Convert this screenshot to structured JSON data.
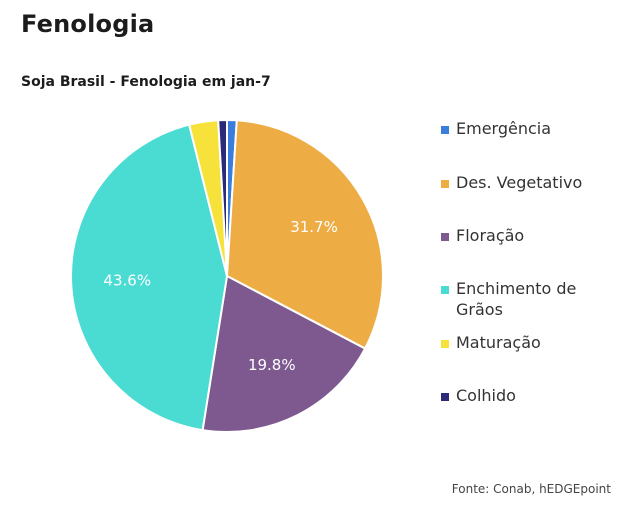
{
  "header": {
    "title": "Fenologia"
  },
  "chart_data": {
    "type": "pie",
    "title": "Soja Brasil - Fenologia em jan-7",
    "slices": [
      {
        "name": "Emergência",
        "value": 1.0,
        "color": "#3b7ddd",
        "label": ""
      },
      {
        "name": "Des. Vegetativo",
        "value": 31.7,
        "color": "#eeac45",
        "label": "31.7%"
      },
      {
        "name": "Floração",
        "value": 19.8,
        "color": "#7d5990",
        "label": "19.8%"
      },
      {
        "name": "Enchimento de Grãos",
        "value": 43.6,
        "color": "#4adcd3",
        "label": "43.6%"
      },
      {
        "name": "Maturação",
        "value": 3.0,
        "color": "#f7e23c",
        "label": ""
      },
      {
        "name": "Colhido",
        "value": 0.9,
        "color": "#2b2b7a",
        "label": ""
      }
    ],
    "legend_position": "right"
  },
  "legend": {
    "items": [
      {
        "label": "Emergência",
        "color": "#3b7ddd"
      },
      {
        "label": "Des. Vegetativo",
        "color": "#eeac45"
      },
      {
        "label": "Floração",
        "color": "#7d5990"
      },
      {
        "label": "Enchimento de Grãos",
        "color": "#4adcd3"
      },
      {
        "label": "Maturação",
        "color": "#f7e23c"
      },
      {
        "label": "Colhido",
        "color": "#2b2b7a"
      }
    ]
  },
  "footer": {
    "source": "Fonte: Conab, hEDGEpoint"
  }
}
